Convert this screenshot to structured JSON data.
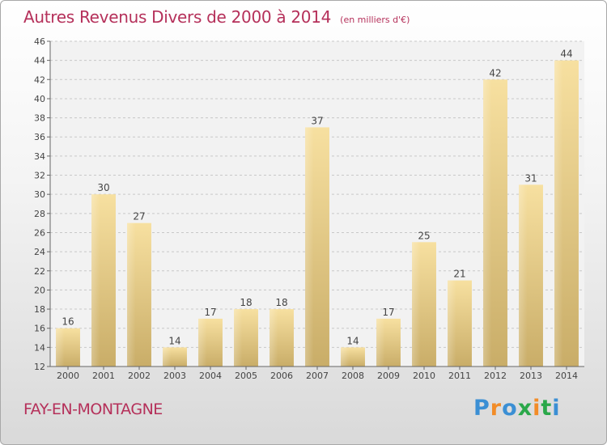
{
  "header": {
    "title": "Autres Revenus Divers de 2000 à 2014",
    "subtitle": "(en milliers d'€)"
  },
  "footer": {
    "commune": "FAY-EN-MONTAGNE",
    "logo_letters": [
      "P",
      "r",
      "o",
      "x",
      "i",
      "t",
      "i"
    ],
    "logo_colors": [
      "#3b8fd4",
      "#f28c28",
      "#3b8fd4",
      "#2aa84a",
      "#f28c28",
      "#2aa84a",
      "#3b8fd4"
    ]
  },
  "chart_data": {
    "type": "bar",
    "title": "Autres Revenus Divers de 2000 à 2014",
    "subtitle": "(en milliers d'€)",
    "categories": [
      "2000",
      "2001",
      "2002",
      "2003",
      "2004",
      "2005",
      "2006",
      "2007",
      "2008",
      "2009",
      "2010",
      "2011",
      "2012",
      "2013",
      "2014"
    ],
    "values": [
      16,
      30,
      27,
      14,
      17,
      18,
      18,
      37,
      14,
      17,
      25,
      21,
      42,
      31,
      44
    ],
    "ylim": [
      12,
      46
    ],
    "yticks": [
      12,
      14,
      16,
      18,
      20,
      22,
      24,
      26,
      28,
      30,
      32,
      34,
      36,
      38,
      40,
      42,
      44,
      46
    ],
    "grid": true,
    "bar_color": "#e9cf86"
  }
}
